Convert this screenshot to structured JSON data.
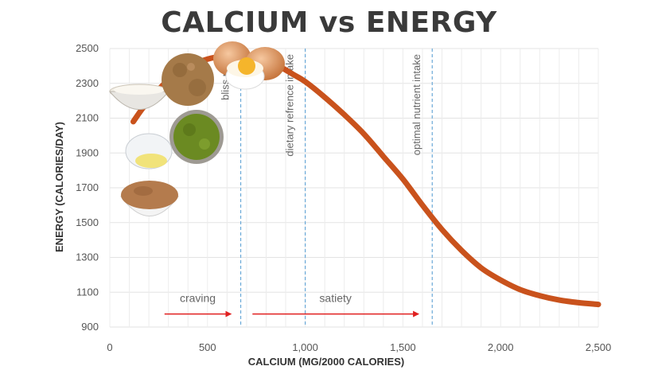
{
  "chart_data": {
    "type": "line",
    "title": "CALCIUM vs ENERGY",
    "xlabel": "CALCIUM (MG/2000 CALORIES)",
    "ylabel": "ENERGY (CALORIES/DAY)",
    "xlim": [
      0,
      2500
    ],
    "ylim": [
      900,
      2500
    ],
    "x_ticks": [
      0,
      500,
      1000,
      1500,
      2000,
      2500
    ],
    "x_tick_labels": [
      "0",
      "500",
      "1,000",
      "1,500",
      "2,000",
      "2,500"
    ],
    "y_ticks": [
      900,
      1100,
      1300,
      1500,
      1700,
      1900,
      2100,
      2300,
      2500
    ],
    "y_tick_labels": [
      "900",
      "1100",
      "1300",
      "1500",
      "1700",
      "1900",
      "2100",
      "2300",
      "2500"
    ],
    "grid": true,
    "line_color": "#c9521c",
    "series": [
      {
        "x": [
          120,
          170,
          230,
          300,
          380,
          450,
          520,
          580,
          640,
          700,
          760,
          820,
          880,
          940,
          1000,
          1100,
          1200,
          1300,
          1400,
          1500,
          1600,
          1700,
          1800,
          1900,
          2000,
          2100,
          2200,
          2300,
          2400,
          2500
        ],
        "y": [
          2080,
          2160,
          2240,
          2320,
          2380,
          2420,
          2445,
          2455,
          2460,
          2455,
          2440,
          2420,
          2390,
          2350,
          2310,
          2220,
          2120,
          2010,
          1880,
          1750,
          1600,
          1460,
          1340,
          1240,
          1170,
          1115,
          1080,
          1055,
          1040,
          1030
        ]
      }
    ],
    "reference_lines": [
      {
        "x": 670,
        "label": "bliss point"
      },
      {
        "x": 1000,
        "label": "dietary refrence intake"
      },
      {
        "x": 1650,
        "label": "optimal nutrient intake"
      }
    ],
    "reference_line_color": "#6aa9d8",
    "arrows": [
      {
        "x0": 280,
        "x1": 620,
        "y": 975,
        "label": "craving"
      },
      {
        "x0": 730,
        "x1": 1580,
        "y": 975,
        "label": "satiety"
      }
    ],
    "arrow_color": "#e02020"
  }
}
